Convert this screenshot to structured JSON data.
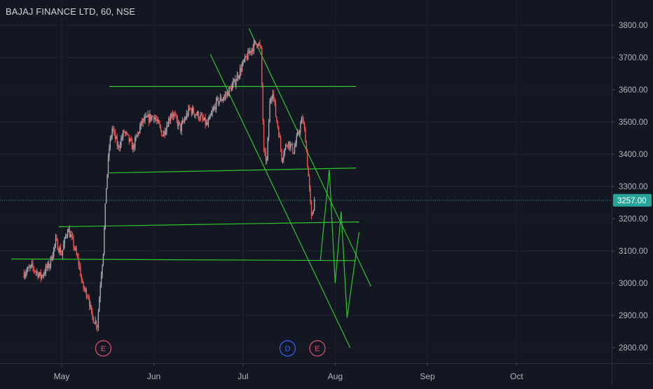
{
  "header": {
    "title": "BAJAJ FINANCE LTD, 60, NSE"
  },
  "colors": {
    "background": "#131722",
    "grid": "#1e222d",
    "axis_text": "#b2b5be",
    "up_candle": "#a3a6af",
    "down_candle": "#ef5350",
    "trendline": "#2ec52e",
    "price_line": "#26a69a",
    "earnings_marker": "#e0506e",
    "dividend_marker": "#2962ff"
  },
  "chart_data": {
    "type": "candlestick",
    "symbol": "BAJAJ FINANCE LTD",
    "interval": "60",
    "exchange": "NSE",
    "title": "BAJAJ FINANCE LTD, 60, NSE",
    "ylim": [
      2770,
      3840
    ],
    "y_ticks": [
      "3800.00",
      "3700.00",
      "3600.00",
      "3500.00",
      "3400.00",
      "3300.00",
      "3200.00",
      "3100.00",
      "3000.00",
      "2900.00",
      "2800.00"
    ],
    "x_ticks": [
      "May",
      "Jun",
      "Jul",
      "Aug",
      "Sep",
      "Oct"
    ],
    "last_price": "3257.00",
    "grid": true,
    "price_path": [
      {
        "d": "2021-04-18",
        "p": 3030
      },
      {
        "d": "2021-04-21",
        "p": 3050
      },
      {
        "d": "2021-04-24",
        "p": 3020
      },
      {
        "d": "2021-04-27",
        "p": 3060
      },
      {
        "d": "2021-04-29",
        "p": 3130
      },
      {
        "d": "2021-05-01",
        "p": 3090
      },
      {
        "d": "2021-05-03",
        "p": 3170
      },
      {
        "d": "2021-05-05",
        "p": 3120
      },
      {
        "d": "2021-05-07",
        "p": 3050
      },
      {
        "d": "2021-05-08",
        "p": 2990
      },
      {
        "d": "2021-05-10",
        "p": 2960
      },
      {
        "d": "2021-05-11",
        "p": 2900
      },
      {
        "d": "2021-05-13",
        "p": 2870
      },
      {
        "d": "2021-05-14",
        "p": 3000
      },
      {
        "d": "2021-05-15",
        "p": 3100
      },
      {
        "d": "2021-05-16",
        "p": 3300
      },
      {
        "d": "2021-05-17",
        "p": 3420
      },
      {
        "d": "2021-05-18",
        "p": 3480
      },
      {
        "d": "2021-05-20",
        "p": 3420
      },
      {
        "d": "2021-05-22",
        "p": 3470
      },
      {
        "d": "2021-05-25",
        "p": 3420
      },
      {
        "d": "2021-05-28",
        "p": 3500
      },
      {
        "d": "2021-06-01",
        "p": 3520
      },
      {
        "d": "2021-06-04",
        "p": 3460
      },
      {
        "d": "2021-06-07",
        "p": 3530
      },
      {
        "d": "2021-06-10",
        "p": 3480
      },
      {
        "d": "2021-06-13",
        "p": 3540
      },
      {
        "d": "2021-06-16",
        "p": 3520
      },
      {
        "d": "2021-06-19",
        "p": 3490
      },
      {
        "d": "2021-06-22",
        "p": 3560
      },
      {
        "d": "2021-06-25",
        "p": 3580
      },
      {
        "d": "2021-06-28",
        "p": 3620
      },
      {
        "d": "2021-07-01",
        "p": 3680
      },
      {
        "d": "2021-07-04",
        "p": 3730
      },
      {
        "d": "2021-07-06",
        "p": 3750
      },
      {
        "d": "2021-07-07",
        "p": 3720
      },
      {
        "d": "2021-07-08",
        "p": 3400
      },
      {
        "d": "2021-07-09",
        "p": 3380
      },
      {
        "d": "2021-07-10",
        "p": 3560
      },
      {
        "d": "2021-07-11",
        "p": 3600
      },
      {
        "d": "2021-07-12",
        "p": 3520
      },
      {
        "d": "2021-07-13",
        "p": 3470
      },
      {
        "d": "2021-07-14",
        "p": 3390
      },
      {
        "d": "2021-07-16",
        "p": 3440
      },
      {
        "d": "2021-07-18",
        "p": 3410
      },
      {
        "d": "2021-07-20",
        "p": 3480
      },
      {
        "d": "2021-07-21",
        "p": 3510
      },
      {
        "d": "2021-07-22",
        "p": 3450
      },
      {
        "d": "2021-07-23",
        "p": 3330
      },
      {
        "d": "2021-07-24",
        "p": 3200
      },
      {
        "d": "2021-07-25",
        "p": 3257
      }
    ],
    "trendlines": [
      {
        "from": {
          "d": "2021-05-17",
          "p": 3610
        },
        "to": {
          "d": "2021-08-08",
          "p": 3610
        }
      },
      {
        "from": {
          "d": "2021-05-17",
          "p": 3342
        },
        "to": {
          "d": "2021-08-08",
          "p": 3357
        }
      },
      {
        "from": {
          "d": "2021-04-30",
          "p": 3175
        },
        "to": {
          "d": "2021-08-09",
          "p": 3190
        }
      },
      {
        "from": {
          "d": "2021-04-14",
          "p": 3075
        },
        "to": {
          "d": "2021-08-08",
          "p": 3070
        }
      },
      {
        "from": {
          "d": "2021-06-20",
          "p": 3710
        },
        "to": {
          "d": "2021-08-06",
          "p": 2800
        }
      },
      {
        "from": {
          "d": "2021-07-03",
          "p": 3790
        },
        "to": {
          "d": "2021-08-13",
          "p": 2990
        }
      }
    ],
    "projection_path": [
      {
        "d": "2021-07-27",
        "p": 3070
      },
      {
        "d": "2021-07-30",
        "p": 3352
      },
      {
        "d": "2021-08-01",
        "p": 3000
      },
      {
        "d": "2021-08-03",
        "p": 3222
      },
      {
        "d": "2021-08-05",
        "p": 2893
      },
      {
        "d": "2021-08-09",
        "p": 3158
      }
    ],
    "events": [
      {
        "label": "E",
        "kind": "earnings",
        "d": "2021-05-15"
      },
      {
        "label": "D",
        "kind": "dividend",
        "d": "2021-07-16"
      },
      {
        "label": "E",
        "kind": "earnings",
        "d": "2021-07-26"
      }
    ]
  }
}
